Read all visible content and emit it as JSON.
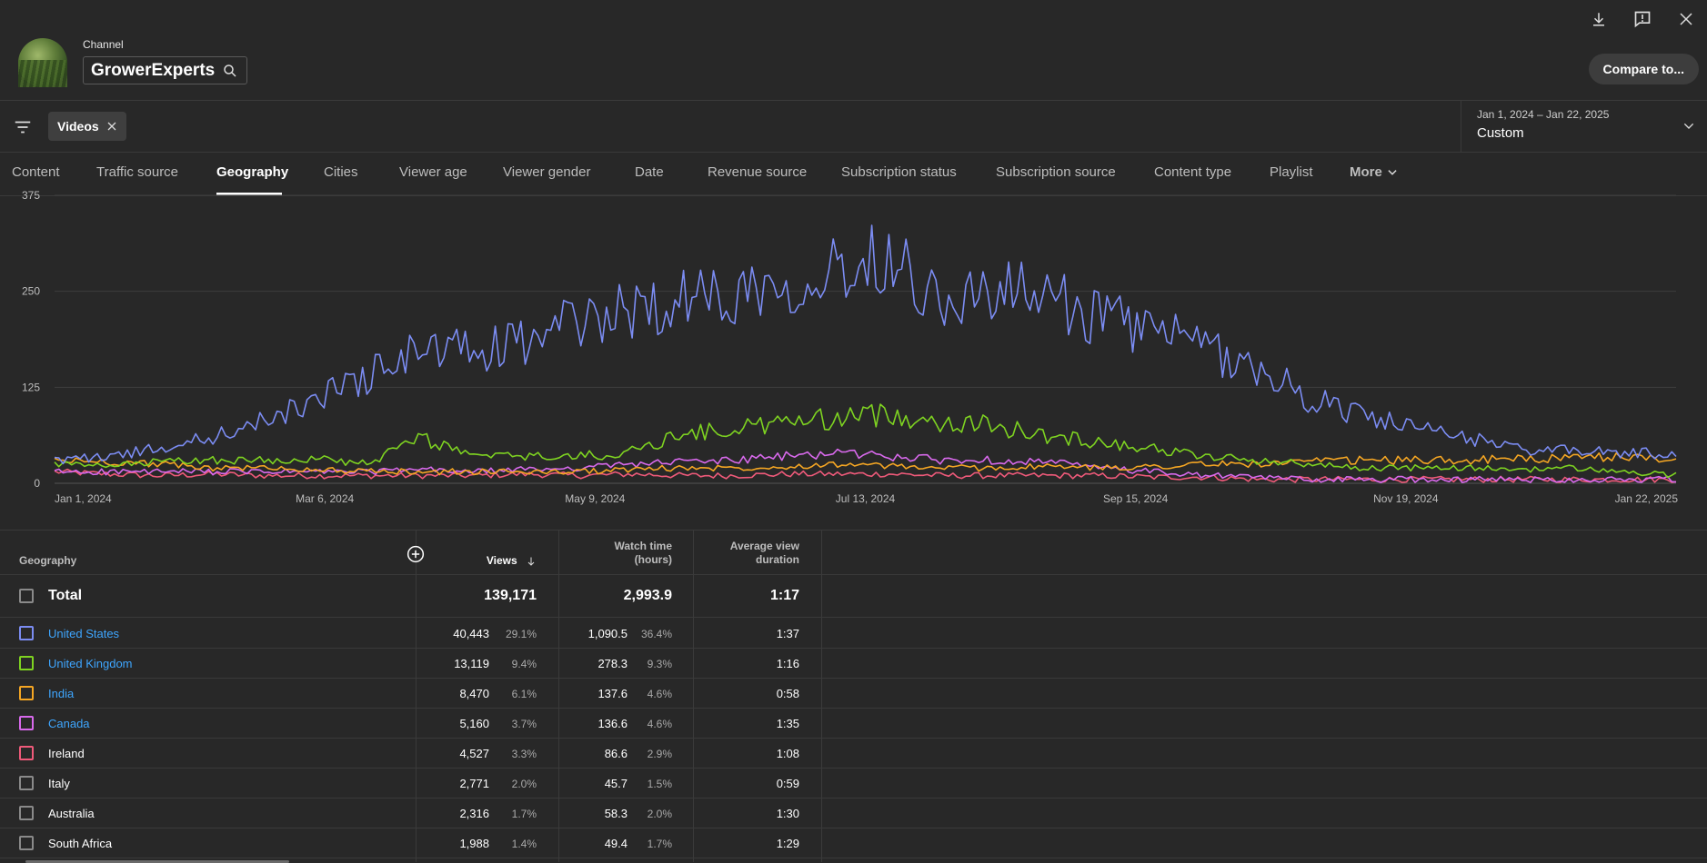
{
  "header": {
    "channel_caption": "Channel",
    "channel_name": "GrowerExperts",
    "compare_label": "Compare to...",
    "icons": [
      "download-icon",
      "feedback-icon",
      "close-icon"
    ]
  },
  "filter": {
    "chip_label": "Videos",
    "date_range": "Jan 1, 2024 – Jan 22, 2025",
    "date_preset": "Custom"
  },
  "tabs": [
    {
      "label": "Content"
    },
    {
      "label": "Traffic source"
    },
    {
      "label": "Geography",
      "active": true
    },
    {
      "label": "Cities"
    },
    {
      "label": "Viewer age"
    },
    {
      "label": "Viewer gender"
    },
    {
      "label": "Date"
    },
    {
      "label": "Revenue source"
    },
    {
      "label": "Subscription status"
    },
    {
      "label": "Subscription source"
    },
    {
      "label": "Content type"
    },
    {
      "label": "Playlist"
    },
    {
      "label": "More"
    }
  ],
  "chart_data": {
    "type": "line",
    "x_ticks": [
      "Jan 1, 2024",
      "Mar 6, 2024",
      "May 9, 2024",
      "Jul 13, 2024",
      "Sep 15, 2024",
      "Nov 19, 2024",
      "Jan 22, 2025"
    ],
    "y_ticks": [
      "0",
      "125",
      "250",
      "375"
    ],
    "ylim": [
      0,
      375
    ],
    "grid": true,
    "series": [
      {
        "name": "United States",
        "color": "#7b8cf2",
        "values": [
          30,
          35,
          45,
          60,
          80,
          110,
          140,
          175,
          170,
          185,
          210,
          225,
          240,
          250,
          265,
          280,
          300,
          235,
          250,
          240,
          215,
          200,
          175,
          150,
          110,
          90,
          70,
          60,
          45,
          42,
          40,
          38
        ]
      },
      {
        "name": "United Kingdom",
        "color": "#7ed321",
        "values": [
          25,
          22,
          28,
          30,
          30,
          32,
          25,
          60,
          35,
          35,
          35,
          40,
          65,
          70,
          80,
          85,
          90,
          80,
          75,
          60,
          55,
          45,
          35,
          30,
          25,
          20,
          20,
          20,
          18,
          20,
          15,
          10
        ]
      },
      {
        "name": "India",
        "color": "#f5a623",
        "values": [
          30,
          28,
          25,
          20,
          20,
          18,
          15,
          15,
          15,
          15,
          15,
          18,
          20,
          20,
          22,
          25,
          22,
          20,
          20,
          22,
          20,
          22,
          25,
          25,
          28,
          30,
          30,
          30,
          32,
          32,
          35,
          30
        ]
      },
      {
        "name": "Canada",
        "color": "#d869ec",
        "values": [
          15,
          15,
          15,
          15,
          15,
          15,
          15,
          18,
          15,
          18,
          20,
          25,
          28,
          30,
          35,
          40,
          35,
          30,
          30,
          28,
          20,
          15,
          10,
          8,
          5,
          5,
          5,
          5,
          5,
          5,
          5,
          5
        ]
      },
      {
        "name": "Ireland",
        "color": "#ef5a7a",
        "values": [
          15,
          12,
          10,
          12,
          10,
          10,
          10,
          10,
          10,
          12,
          10,
          12,
          10,
          10,
          12,
          12,
          12,
          10,
          10,
          10,
          10,
          8,
          8,
          5,
          5,
          5,
          5,
          5,
          5,
          5,
          5,
          5
        ]
      }
    ]
  },
  "table": {
    "columns": {
      "geography": "Geography",
      "views": "Views",
      "watch_time": [
        "Watch time",
        "(hours)"
      ],
      "avg_duration": [
        "Average view",
        "duration"
      ]
    },
    "total": {
      "label": "Total",
      "views": "139,171",
      "watch": "2,993.9",
      "avg": "1:17"
    },
    "rows": [
      {
        "name": "United States",
        "views": "40,443",
        "views_pct": "29.1%",
        "watch": "1,090.5",
        "watch_pct": "36.4%",
        "avg": "1:37",
        "color": "#7b8cf2",
        "link": true
      },
      {
        "name": "United Kingdom",
        "views": "13,119",
        "views_pct": "9.4%",
        "watch": "278.3",
        "watch_pct": "9.3%",
        "avg": "1:16",
        "color": "#7ed321",
        "link": true
      },
      {
        "name": "India",
        "views": "8,470",
        "views_pct": "6.1%",
        "watch": "137.6",
        "watch_pct": "4.6%",
        "avg": "0:58",
        "color": "#f5a623",
        "link": true
      },
      {
        "name": "Canada",
        "views": "5,160",
        "views_pct": "3.7%",
        "watch": "136.6",
        "watch_pct": "4.6%",
        "avg": "1:35",
        "color": "#d869ec",
        "link": true
      },
      {
        "name": "Ireland",
        "views": "4,527",
        "views_pct": "3.3%",
        "watch": "86.6",
        "watch_pct": "2.9%",
        "avg": "1:08",
        "color": "#ef5a7a",
        "link": false
      },
      {
        "name": "Italy",
        "views": "2,771",
        "views_pct": "2.0%",
        "watch": "45.7",
        "watch_pct": "1.5%",
        "avg": "0:59",
        "color": "#8a8a8a",
        "link": false
      },
      {
        "name": "Australia",
        "views": "2,316",
        "views_pct": "1.7%",
        "watch": "58.3",
        "watch_pct": "2.0%",
        "avg": "1:30",
        "color": "#8a8a8a",
        "link": false
      },
      {
        "name": "South Africa",
        "views": "1,988",
        "views_pct": "1.4%",
        "watch": "49.4",
        "watch_pct": "1.7%",
        "avg": "1:29",
        "color": "#8a8a8a",
        "link": false
      }
    ]
  }
}
